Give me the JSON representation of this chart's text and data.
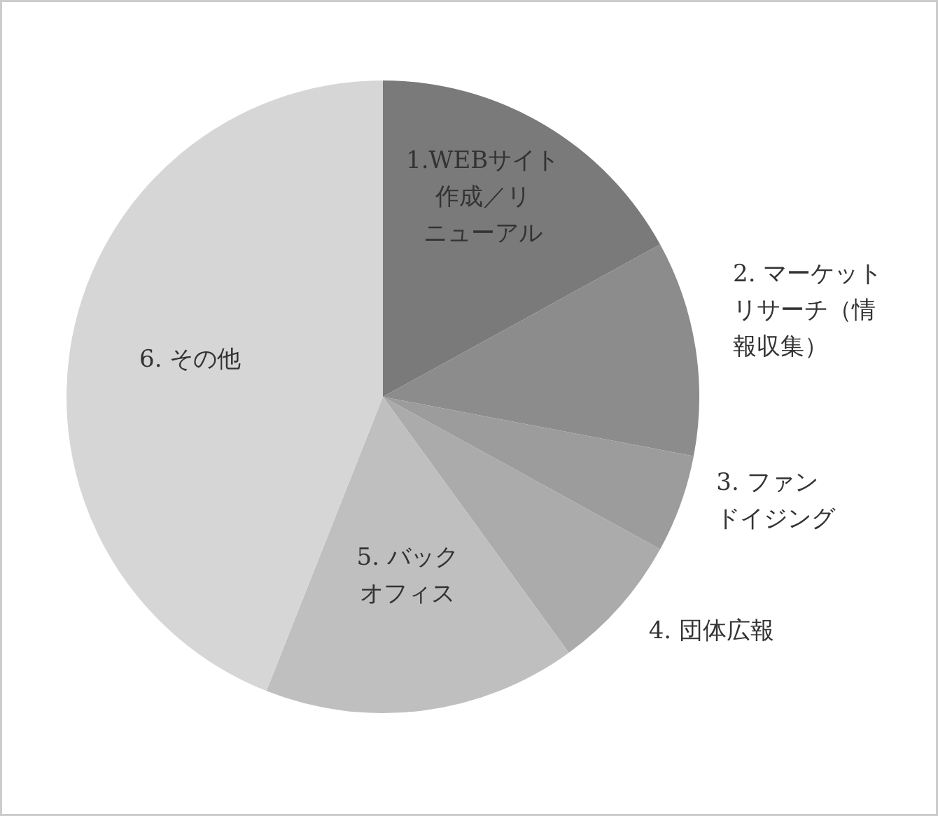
{
  "chart_data": {
    "type": "pie",
    "categories": [
      "1.WEBサイト作成／リニューアル",
      "2. マーケットリサーチ（情報収集）",
      "3. ファンドイジング",
      "4. 団体広報",
      "5. バックオフィス",
      "6. その他"
    ],
    "values": [
      17,
      11,
      5,
      7,
      16,
      44
    ],
    "colors": [
      "#7a7a7a",
      "#8c8c8c",
      "#9c9c9c",
      "#ababab",
      "#bfbfbf",
      "#d6d6d6"
    ]
  }
}
